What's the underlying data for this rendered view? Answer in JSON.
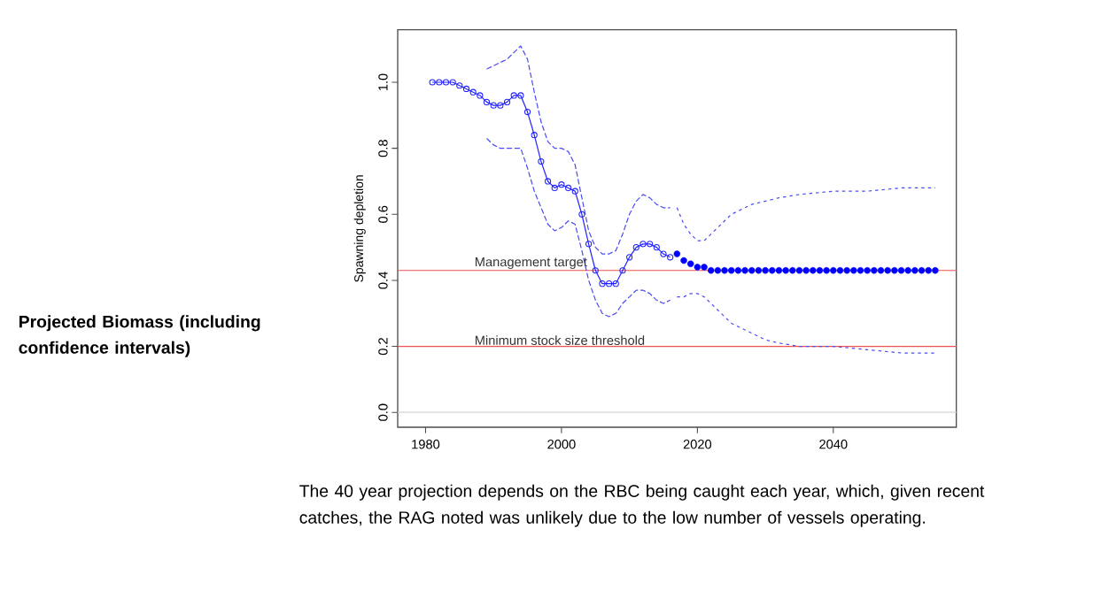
{
  "chart_data": {
    "type": "line",
    "title": "Projected Biomass (including confidence intervals)",
    "ylabel": "Spawning depletion",
    "xlim": [
      1975.9,
      2058.1
    ],
    "ylim": [
      -0.045,
      1.159
    ],
    "xticks": [
      1980,
      2000,
      2020,
      2040
    ],
    "yticks": [
      {
        "value": 0,
        "label": "0.0"
      },
      0.2,
      0.4,
      0.6,
      0.8,
      {
        "value": 1,
        "label": "1.0"
      }
    ],
    "series": [
      {
        "marker": "circle",
        "line_style": "solid",
        "color": "#2323ff",
        "x": [
          1981,
          1982,
          1983,
          1984,
          1985,
          1986,
          1987,
          1988,
          1989,
          1990,
          1991,
          1992,
          1993,
          1994,
          1995,
          1996,
          1997,
          1998,
          1999,
          2000,
          2001,
          2002,
          2003,
          2004,
          2005,
          2006,
          2007,
          2008,
          2009,
          2010,
          2011,
          2012,
          2013,
          2014,
          2015,
          2016
        ],
        "values": [
          1.0,
          1.0,
          1.0,
          1.0,
          0.99,
          0.98,
          0.97,
          0.96,
          0.94,
          0.93,
          0.93,
          0.94,
          0.96,
          0.96,
          0.91,
          0.84,
          0.76,
          0.7,
          0.68,
          0.69,
          0.68,
          0.67,
          0.6,
          0.51,
          0.43,
          0.39,
          0.39,
          0.39,
          0.43,
          0.47,
          0.5,
          0.51,
          0.51,
          0.5,
          0.48,
          0.47
        ]
      },
      {
        "type": "scatter",
        "marker": "circle",
        "color": "#0000ff",
        "x": [
          2017,
          2018,
          2019,
          2020,
          2021,
          2022,
          2023,
          2024,
          2025,
          2026,
          2027,
          2028,
          2029,
          2030,
          2031,
          2032,
          2033,
          2034,
          2035,
          2036,
          2037,
          2038,
          2039,
          2040,
          2041,
          2042,
          2043,
          2044,
          2045,
          2046,
          2047,
          2048,
          2049,
          2050,
          2051,
          2052,
          2053,
          2054,
          2055
        ],
        "values": [
          0.48,
          0.46,
          0.45,
          0.44,
          0.44,
          0.43,
          0.43,
          0.43,
          0.43,
          0.43,
          0.43,
          0.43,
          0.43,
          0.43,
          0.43,
          0.43,
          0.43,
          0.43,
          0.43,
          0.43,
          0.43,
          0.43,
          0.43,
          0.43,
          0.43,
          0.43,
          0.43,
          0.43,
          0.43,
          0.43,
          0.43,
          0.43,
          0.43,
          0.43,
          0.43,
          0.43,
          0.43,
          0.43,
          0.43
        ]
      },
      {
        "marker": "none",
        "line_style": "dashed",
        "color": "#4b4bf0",
        "x": [
          1989,
          1990,
          1992,
          1994,
          1995,
          1996,
          1997,
          1998,
          1999,
          2000,
          2001,
          2002,
          2003,
          2004,
          2005,
          2006,
          2007,
          2008,
          2009,
          2010,
          2011,
          2012,
          2013,
          2014,
          2015,
          2016
        ],
        "values": [
          1.04,
          1.05,
          1.07,
          1.11,
          1.07,
          0.97,
          0.88,
          0.82,
          0.8,
          0.8,
          0.79,
          0.75,
          0.65,
          0.55,
          0.5,
          0.48,
          0.48,
          0.49,
          0.54,
          0.6,
          0.64,
          0.66,
          0.65,
          0.63,
          0.62,
          0.62
        ]
      },
      {
        "marker": "none",
        "line_style": "dashed",
        "color": "#4b4bf0",
        "x": [
          1989,
          1990,
          1991,
          1992,
          1993,
          1994,
          1995,
          1996,
          1997,
          1998,
          1999,
          2000,
          2001,
          2002,
          2003,
          2004,
          2005,
          2006,
          2007,
          2008,
          2009,
          2010,
          2011,
          2012,
          2013,
          2014,
          2015,
          2016
        ],
        "values": [
          0.83,
          0.81,
          0.8,
          0.8,
          0.8,
          0.8,
          0.74,
          0.67,
          0.62,
          0.57,
          0.55,
          0.56,
          0.58,
          0.57,
          0.49,
          0.4,
          0.34,
          0.3,
          0.29,
          0.3,
          0.33,
          0.35,
          0.37,
          0.37,
          0.36,
          0.34,
          0.33,
          0.34
        ]
      },
      {
        "marker": "none",
        "line_style": "dotted",
        "color": "#4b4bf0",
        "x": [
          2017,
          2018,
          2019,
          2020,
          2021,
          2022,
          2023,
          2024,
          2025,
          2026,
          2028,
          2030,
          2032,
          2035,
          2040,
          2045,
          2050,
          2055
        ],
        "values": [
          0.62,
          0.57,
          0.54,
          0.52,
          0.52,
          0.54,
          0.56,
          0.58,
          0.6,
          0.61,
          0.63,
          0.64,
          0.65,
          0.66,
          0.67,
          0.67,
          0.68,
          0.68
        ]
      },
      {
        "marker": "none",
        "line_style": "dotted",
        "color": "#4b4bf0",
        "x": [
          2017,
          2018,
          2019,
          2020,
          2021,
          2022,
          2023,
          2024,
          2025,
          2026,
          2028,
          2030,
          2032,
          2035,
          2040,
          2045,
          2050,
          2055
        ],
        "values": [
          0.35,
          0.35,
          0.36,
          0.36,
          0.35,
          0.33,
          0.31,
          0.29,
          0.27,
          0.26,
          0.24,
          0.22,
          0.21,
          0.2,
          0.2,
          0.19,
          0.18,
          0.18
        ]
      }
    ],
    "ref_lines": [
      {
        "axis": "y",
        "value": 0.43,
        "label": "Management target",
        "color": "#f05050"
      },
      {
        "axis": "y",
        "value": 0.2,
        "label": "Minimum stock size threshold",
        "color": "#f05050"
      },
      {
        "axis": "y",
        "value": 0,
        "color": "#d4d4d4"
      }
    ],
    "annotations": [
      "The 40 year projection depends on the RBC being caught each year, which, given recent catches, the RAG noted was unlikely due to the low number of vessels operating."
    ]
  }
}
